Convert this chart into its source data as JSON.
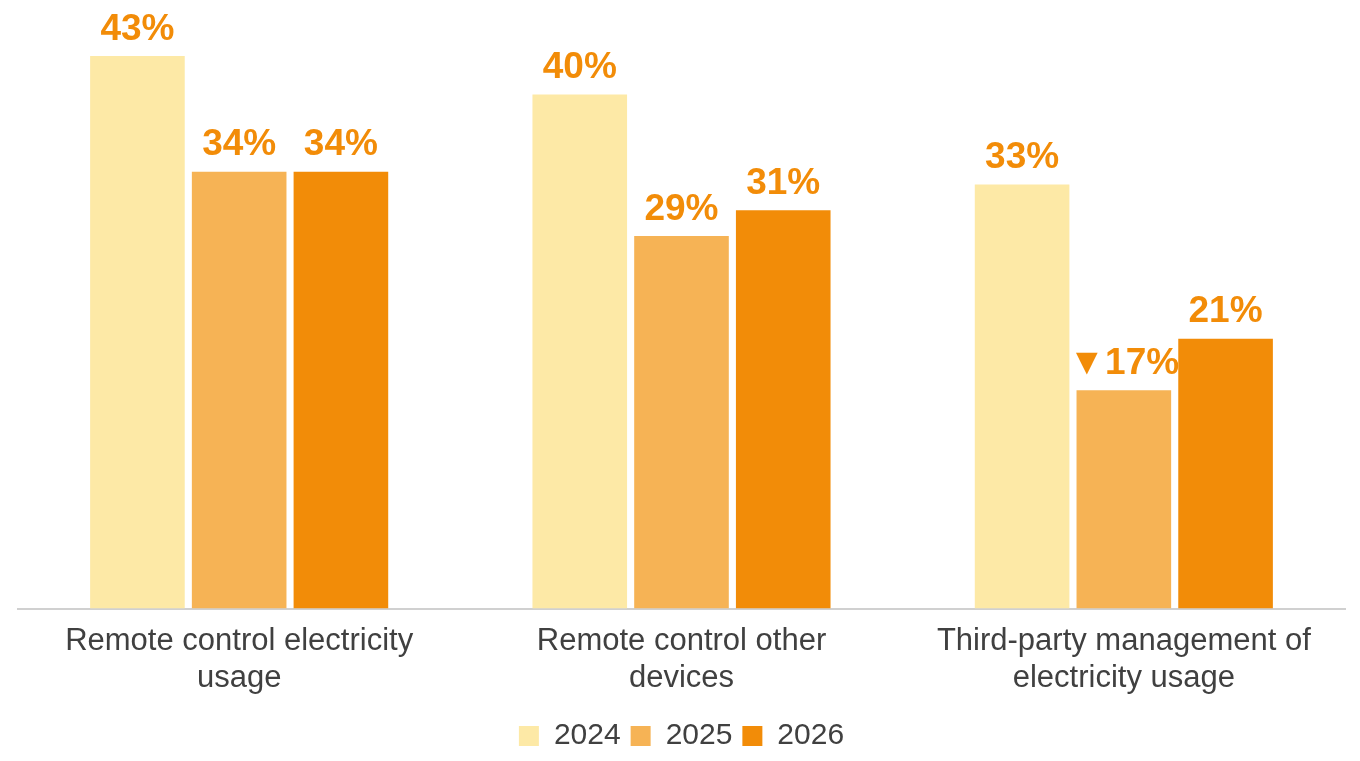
{
  "chart_data": {
    "type": "bar",
    "categories": [
      "Remote control electricity usage",
      "Remote control other devices",
      "Third-party management of electricity usage"
    ],
    "series": [
      {
        "name": "2024",
        "color": "#fde9a6",
        "values": [
          43,
          40,
          33
        ],
        "value_labels": [
          "43%",
          "40%",
          "33%"
        ]
      },
      {
        "name": "2025",
        "color": "#f6b355",
        "values": [
          34,
          29,
          17
        ],
        "value_labels": [
          "34%",
          "29%",
          "▼17%"
        ]
      },
      {
        "name": "2026",
        "color": "#f28c08",
        "values": [
          34,
          31,
          21
        ],
        "value_labels": [
          "34%",
          "31%",
          "21%"
        ]
      }
    ],
    "ylim": [
      0,
      43
    ],
    "tick_labels": "x",
    "legend": "bottom"
  }
}
